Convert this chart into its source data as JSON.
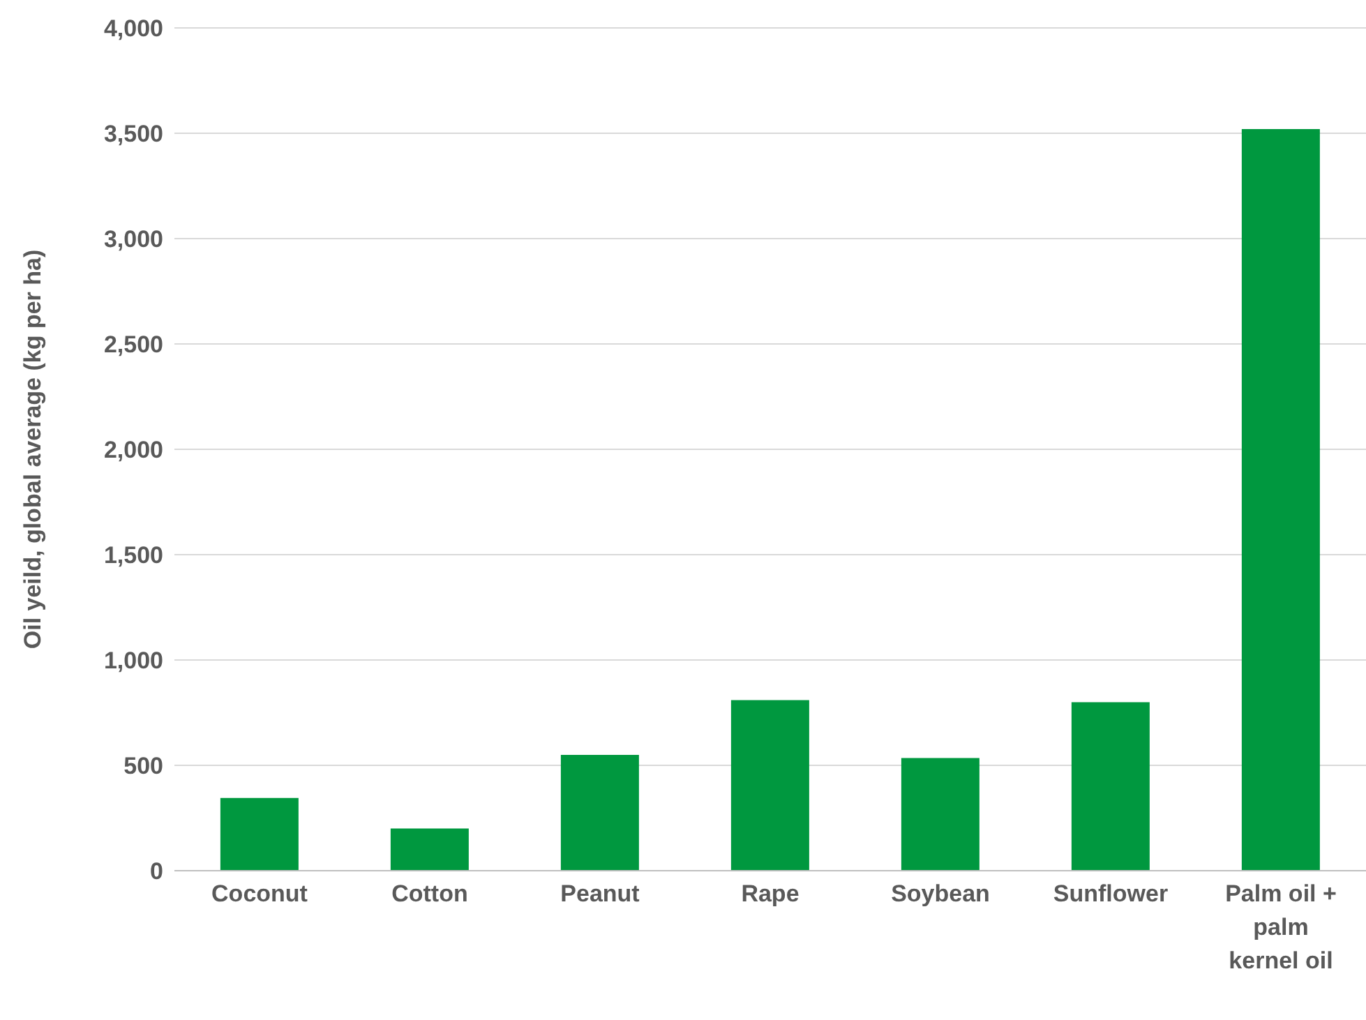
{
  "chart_data": {
    "type": "bar",
    "ylabel": "Oil yeild, global average (kg per ha)",
    "categories": [
      "Coconut",
      "Cotton",
      "Peanut",
      "Rape",
      "Soybean",
      "Sunflower",
      "Palm oil + palm kernel oil"
    ],
    "values": [
      345,
      200,
      550,
      810,
      535,
      800,
      3520
    ],
    "color": "#00983f",
    "ylim": [
      0,
      4000
    ],
    "yticks": [
      {
        "value": 0,
        "label": "0"
      },
      {
        "value": 500,
        "label": "500"
      },
      {
        "value": 1000,
        "label": "1,000"
      },
      {
        "value": 1500,
        "label": "1,500"
      },
      {
        "value": 2000,
        "label": "2,000"
      },
      {
        "value": 2500,
        "label": "2,500"
      },
      {
        "value": 3000,
        "label": "3,000"
      },
      {
        "value": 3500,
        "label": "3,500"
      },
      {
        "value": 4000,
        "label": "4,000"
      }
    ],
    "grid": "y",
    "legend": false
  }
}
